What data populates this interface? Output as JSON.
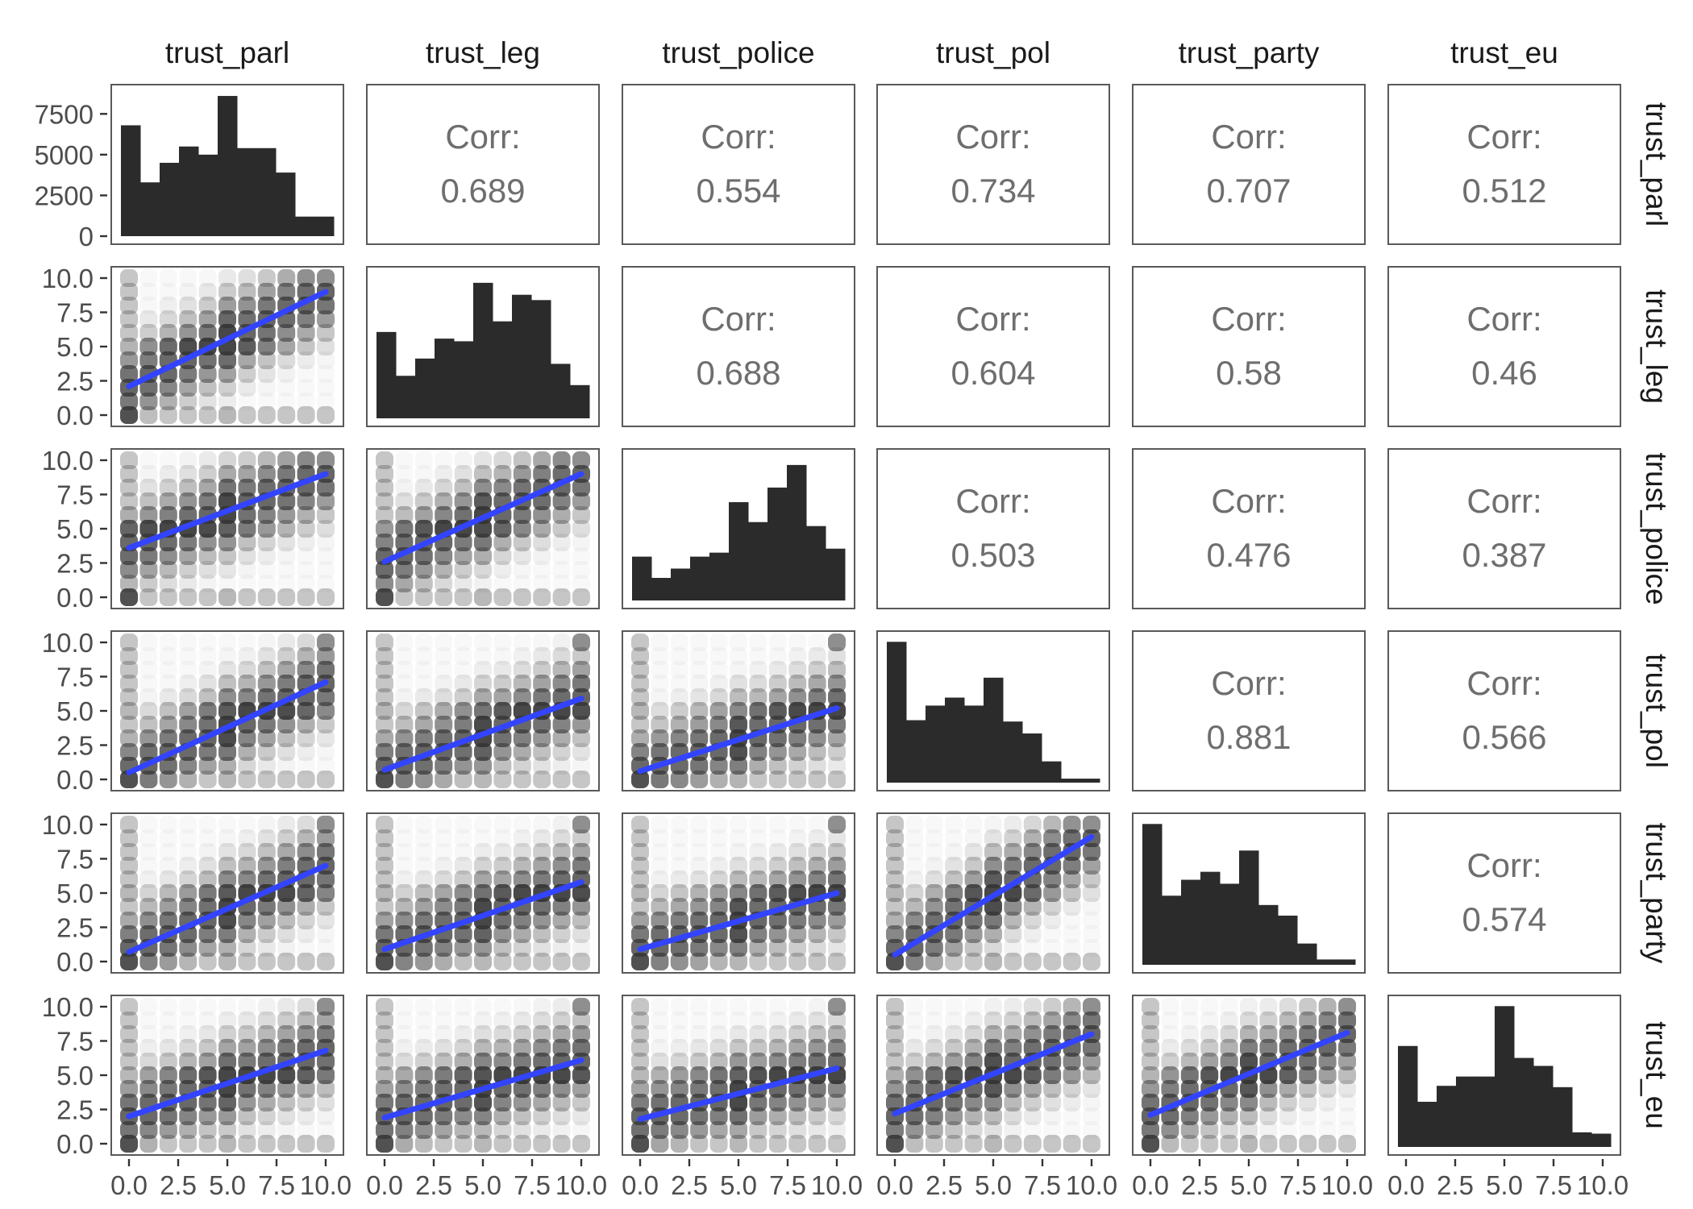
{
  "chart_data": {
    "type": "scatter-matrix",
    "variables": [
      "trust_parl",
      "trust_leg",
      "trust_police",
      "trust_pol",
      "trust_party",
      "trust_eu"
    ],
    "range": [
      0,
      10
    ],
    "axis_ticks": [
      "0.0",
      "2.5",
      "5.0",
      "7.5",
      "10.0"
    ],
    "count_ticks": [
      "0",
      "2500",
      "5000",
      "7500"
    ],
    "count_range": [
      0,
      8800
    ],
    "corr_label": "Corr:",
    "correlations": [
      {
        "row": 0,
        "col": 1,
        "value": "0.689"
      },
      {
        "row": 0,
        "col": 2,
        "value": "0.554"
      },
      {
        "row": 0,
        "col": 3,
        "value": "0.734"
      },
      {
        "row": 0,
        "col": 4,
        "value": "0.707"
      },
      {
        "row": 0,
        "col": 5,
        "value": "0.512"
      },
      {
        "row": 1,
        "col": 2,
        "value": "0.688"
      },
      {
        "row": 1,
        "col": 3,
        "value": "0.604"
      },
      {
        "row": 1,
        "col": 4,
        "value": "0.58"
      },
      {
        "row": 1,
        "col": 5,
        "value": "0.46"
      },
      {
        "row": 2,
        "col": 3,
        "value": "0.503"
      },
      {
        "row": 2,
        "col": 4,
        "value": "0.476"
      },
      {
        "row": 2,
        "col": 5,
        "value": "0.387"
      },
      {
        "row": 3,
        "col": 4,
        "value": "0.881"
      },
      {
        "row": 3,
        "col": 5,
        "value": "0.566"
      },
      {
        "row": 4,
        "col": 5,
        "value": "0.574"
      }
    ],
    "histograms": [
      [
        6800,
        3300,
        4500,
        5500,
        5000,
        8600,
        5400,
        5400,
        3900,
        1200,
        1200
      ],
      [
        6500,
        3200,
        4500,
        6000,
        5800,
        10200,
        7300,
        9300,
        8900,
        4100,
        2500
      ],
      [
        3300,
        1700,
        2400,
        3300,
        3600,
        7400,
        5900,
        8500,
        10200,
        5600,
        3900
      ],
      [
        10600,
        4700,
        5800,
        6400,
        5800,
        7900,
        4600,
        3700,
        1600,
        300,
        300
      ],
      [
        10600,
        5200,
        6400,
        7000,
        6100,
        8600,
        4500,
        3700,
        1600,
        400,
        400
      ],
      [
        7600,
        3400,
        4600,
        5300,
        5300,
        10600,
        6700,
        6100,
        4500,
        1100,
        1000
      ]
    ],
    "fit_lines": [
      {
        "row": 1,
        "col": 0,
        "y0": 2.1,
        "y10": 9.0
      },
      {
        "row": 2,
        "col": 0,
        "y0": 3.6,
        "y10": 9.0
      },
      {
        "row": 2,
        "col": 1,
        "y0": 2.6,
        "y10": 9.0
      },
      {
        "row": 3,
        "col": 0,
        "y0": 0.5,
        "y10": 7.1
      },
      {
        "row": 3,
        "col": 1,
        "y0": 0.7,
        "y10": 5.9
      },
      {
        "row": 3,
        "col": 2,
        "y0": 0.6,
        "y10": 5.2
      },
      {
        "row": 4,
        "col": 0,
        "y0": 0.7,
        "y10": 7.0
      },
      {
        "row": 4,
        "col": 1,
        "y0": 0.9,
        "y10": 5.8
      },
      {
        "row": 4,
        "col": 2,
        "y0": 0.9,
        "y10": 5.0
      },
      {
        "row": 4,
        "col": 3,
        "y0": 0.5,
        "y10": 9.1
      },
      {
        "row": 5,
        "col": 0,
        "y0": 2.0,
        "y10": 6.8
      },
      {
        "row": 5,
        "col": 1,
        "y0": 1.9,
        "y10": 6.1
      },
      {
        "row": 5,
        "col": 2,
        "y0": 1.8,
        "y10": 5.5
      },
      {
        "row": 5,
        "col": 3,
        "y0": 2.2,
        "y10": 8.0
      },
      {
        "row": 5,
        "col": 4,
        "y0": 2.1,
        "y10": 8.1
      }
    ],
    "fit_color": "#3344ff",
    "bar_color": "#2b2b2b",
    "point_color": "#333333",
    "grid": false
  }
}
